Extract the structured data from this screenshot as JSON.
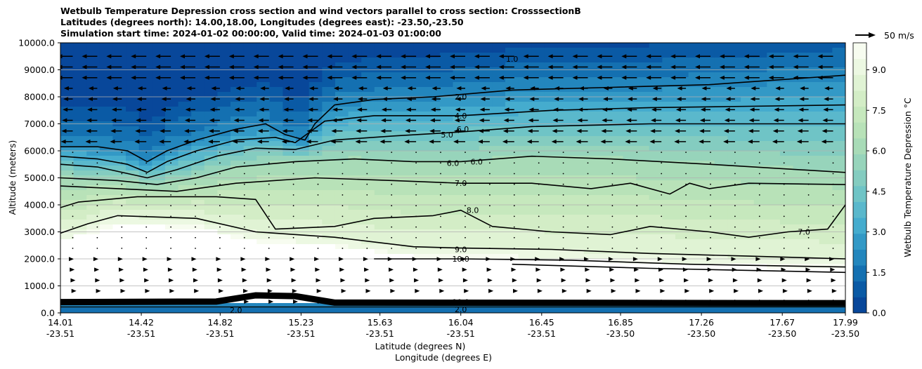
{
  "chart_data": {
    "type": "heatmap",
    "title_lines": [
      "Wetbulb Temperature Depression cross section and wind vectors parallel to cross section: CrosssectionB",
      "Latitudes (degrees north): 14.00,18.00, Longitudes (degrees east): -23.50,-23.50",
      "Simulation start time: 2024-01-02 00:00:00, Valid time: 2024-01-03 01:00:00"
    ],
    "ylabel": "Altitude (meters)",
    "xlabel_lat": "Latitude (degrees N)",
    "xlabel_lon": "Longitude (degrees E)",
    "ylim": [
      0,
      10000
    ],
    "xlim": [
      14.01,
      17.99
    ],
    "yticks": [
      "0.0",
      "1000.0",
      "2000.0",
      "3000.0",
      "4000.0",
      "5000.0",
      "6000.0",
      "7000.0",
      "8000.0",
      "9000.0",
      "10000.0"
    ],
    "ytick_values": [
      0,
      1000,
      2000,
      3000,
      4000,
      5000,
      6000,
      7000,
      8000,
      9000,
      10000
    ],
    "xticks": [
      {
        "lat": "14.01",
        "lon": "-23.51",
        "v": 14.01
      },
      {
        "lat": "14.42",
        "lon": "-23.51",
        "v": 14.42
      },
      {
        "lat": "14.82",
        "lon": "-23.51",
        "v": 14.82
      },
      {
        "lat": "15.23",
        "lon": "-23.51",
        "v": 15.23
      },
      {
        "lat": "15.63",
        "lon": "-23.51",
        "v": 15.63
      },
      {
        "lat": "16.04",
        "lon": "-23.51",
        "v": 16.04
      },
      {
        "lat": "16.45",
        "lon": "-23.51",
        "v": 16.45
      },
      {
        "lat": "16.85",
        "lon": "-23.50",
        "v": 16.85
      },
      {
        "lat": "17.26",
        "lon": "-23.50",
        "v": 17.26
      },
      {
        "lat": "17.67",
        "lon": "-23.50",
        "v": 17.67
      },
      {
        "lat": "17.99",
        "lon": "-23.50",
        "v": 17.99
      }
    ],
    "colorbar": {
      "label": "Wetbulb Temperature Depression °C",
      "min": 0,
      "max": 10,
      "ticks": [
        "0.0",
        "1.5",
        "3.0",
        "4.5",
        "6.0",
        "7.5",
        "9.0"
      ],
      "tick_values": [
        0,
        1.5,
        3,
        4.5,
        6,
        7.5,
        9
      ],
      "colors": [
        "#08479a",
        "#0a5aa5",
        "#1470b1",
        "#2386bd",
        "#3399c6",
        "#45acce",
        "#5ab8cc",
        "#6fc4c6",
        "#84ccc0",
        "#97d4bb",
        "#a8dbb7",
        "#b8e2b8",
        "#c6e8bd",
        "#d3edc6",
        "#e0f3d4",
        "#ecf8e2",
        "#f7fcf0"
      ]
    },
    "quiver_key": {
      "label": "50 m/s",
      "magnitude": 50
    },
    "contour_labels": [
      {
        "text": "2.0",
        "x": 16.04,
        "y": 8000
      },
      {
        "text": "4.0",
        "x": 16.04,
        "y": 7300
      },
      {
        "text": "5.0",
        "x": 15.97,
        "y": 6600
      },
      {
        "text": "6.0",
        "x": 16.05,
        "y": 6800
      },
      {
        "text": "6.0",
        "x": 16.0,
        "y": 5550
      },
      {
        "text": "6.0",
        "x": 16.12,
        "y": 5600
      },
      {
        "text": "7.0",
        "x": 16.04,
        "y": 4800
      },
      {
        "text": "8.0",
        "x": 16.1,
        "y": 3800
      },
      {
        "text": "9.0",
        "x": 16.04,
        "y": 2350
      },
      {
        "text": "10.0",
        "x": 16.04,
        "y": 2000
      },
      {
        "text": "7.0",
        "x": 17.78,
        "y": 3000
      },
      {
        "text": "10.0",
        "x": 16.04,
        "y": 400
      },
      {
        "text": "2.0",
        "x": 16.04,
        "y": 130
      },
      {
        "text": "2.0",
        "x": 14.9,
        "y": 100
      },
      {
        "text": "1.0",
        "x": 16.3,
        "y": 9400
      }
    ],
    "contours": [
      {
        "level": 2,
        "pts": [
          [
            14.01,
            6150
          ],
          [
            14.2,
            6150
          ],
          [
            14.35,
            6000
          ],
          [
            14.45,
            5600
          ],
          [
            14.55,
            6000
          ],
          [
            14.7,
            6400
          ],
          [
            14.9,
            6800
          ],
          [
            15.05,
            7000
          ],
          [
            15.15,
            6600
          ],
          [
            15.25,
            6400
          ],
          [
            15.3,
            7000
          ],
          [
            15.4,
            7700
          ],
          [
            15.6,
            7900
          ],
          [
            15.9,
            8000
          ],
          [
            16.3,
            8250
          ],
          [
            16.8,
            8350
          ],
          [
            17.3,
            8450
          ],
          [
            17.99,
            8800
          ]
        ]
      },
      {
        "level": 4,
        "pts": [
          [
            14.01,
            5800
          ],
          [
            14.2,
            5700
          ],
          [
            14.35,
            5500
          ],
          [
            14.45,
            5200
          ],
          [
            14.55,
            5600
          ],
          [
            14.7,
            6000
          ],
          [
            14.9,
            6400
          ],
          [
            15.1,
            6500
          ],
          [
            15.2,
            6300
          ],
          [
            15.35,
            7100
          ],
          [
            15.6,
            7300
          ],
          [
            16.04,
            7300
          ],
          [
            16.5,
            7500
          ],
          [
            17.0,
            7600
          ],
          [
            17.5,
            7650
          ],
          [
            17.99,
            7700
          ]
        ]
      },
      {
        "level": 5,
        "pts": [
          [
            14.01,
            5500
          ],
          [
            14.2,
            5400
          ],
          [
            14.45,
            5000
          ],
          [
            14.6,
            5300
          ],
          [
            14.8,
            5800
          ],
          [
            15.0,
            6100
          ],
          [
            15.2,
            6050
          ],
          [
            15.4,
            6400
          ],
          [
            15.7,
            6550
          ],
          [
            16.04,
            6700
          ],
          [
            16.4,
            6900
          ],
          [
            17.0,
            7000
          ],
          [
            17.99,
            7000
          ]
        ]
      },
      {
        "level": 6,
        "pts": [
          [
            14.01,
            5000
          ],
          [
            14.3,
            4900
          ],
          [
            14.5,
            4750
          ],
          [
            14.7,
            5000
          ],
          [
            14.9,
            5400
          ],
          [
            15.2,
            5600
          ],
          [
            15.5,
            5700
          ],
          [
            15.8,
            5600
          ],
          [
            16.04,
            5600
          ],
          [
            16.4,
            5800
          ],
          [
            16.8,
            5700
          ],
          [
            17.3,
            5500
          ],
          [
            17.99,
            5200
          ]
        ]
      },
      {
        "level": 7,
        "pts": [
          [
            14.01,
            4700
          ],
          [
            14.3,
            4600
          ],
          [
            14.6,
            4500
          ],
          [
            14.9,
            4800
          ],
          [
            15.3,
            5000
          ],
          [
            15.7,
            4900
          ],
          [
            16.04,
            4800
          ],
          [
            16.4,
            4800
          ],
          [
            16.7,
            4600
          ],
          [
            16.9,
            4800
          ],
          [
            17.1,
            4400
          ],
          [
            17.2,
            4800
          ],
          [
            17.3,
            4600
          ],
          [
            17.5,
            4800
          ],
          [
            17.99,
            4750
          ]
        ]
      },
      {
        "level": 8,
        "pts": [
          [
            14.01,
            3900
          ],
          [
            14.1,
            4100
          ],
          [
            14.4,
            4300
          ],
          [
            14.8,
            4300
          ],
          [
            15.0,
            4200
          ],
          [
            15.1,
            3100
          ],
          [
            15.4,
            3200
          ],
          [
            15.6,
            3500
          ],
          [
            15.9,
            3600
          ],
          [
            16.04,
            3800
          ],
          [
            16.2,
            3200
          ],
          [
            16.5,
            3000
          ],
          [
            16.8,
            2900
          ],
          [
            17.0,
            3200
          ],
          [
            17.3,
            3000
          ],
          [
            17.5,
            2800
          ],
          [
            17.7,
            3000
          ],
          [
            17.9,
            3100
          ],
          [
            17.99,
            4000
          ]
        ]
      },
      {
        "level": 9,
        "pts": [
          [
            14.01,
            2950
          ],
          [
            14.15,
            3300
          ],
          [
            14.3,
            3600
          ],
          [
            14.7,
            3500
          ],
          [
            15.0,
            3000
          ],
          [
            15.4,
            2800
          ],
          [
            15.8,
            2450
          ],
          [
            16.04,
            2400
          ],
          [
            16.5,
            2350
          ],
          [
            17.0,
            2200
          ],
          [
            17.5,
            2100
          ],
          [
            17.99,
            2000
          ]
        ]
      },
      {
        "level": 10,
        "pts": [
          [
            15.6,
            2000
          ],
          [
            16.04,
            2000
          ],
          [
            16.6,
            1950
          ],
          [
            17.2,
            1800
          ],
          [
            17.99,
            1700
          ]
        ]
      },
      {
        "level": 10,
        "pts": [
          [
            16.3,
            1800
          ],
          [
            17.0,
            1650
          ],
          [
            17.99,
            1500
          ]
        ]
      }
    ]
  }
}
